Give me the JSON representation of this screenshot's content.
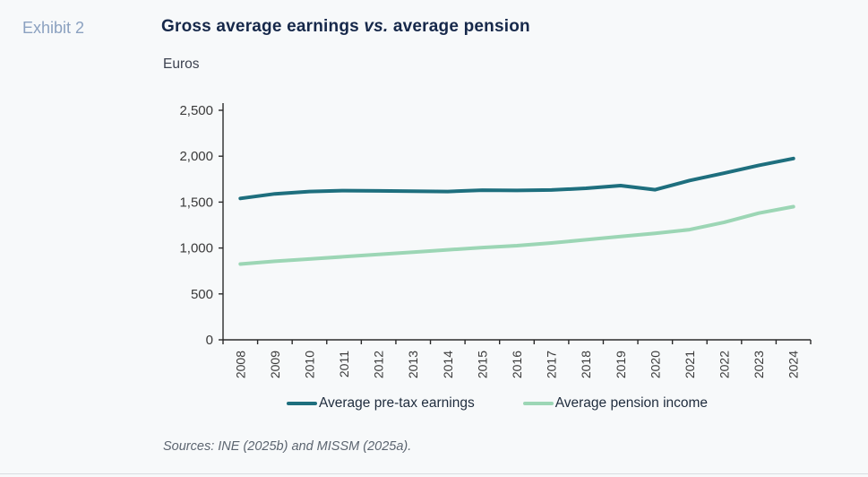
{
  "page": {
    "background": "#f7f9fa"
  },
  "exhibit_label": "Exhibit 2",
  "title": {
    "prefix": "Gross average earnings ",
    "vs": "vs.",
    "suffix": " average pension"
  },
  "units_label": "Euros",
  "source_note": "Sources: INE (2025b) and MISSM (2025a).",
  "colors": {
    "title": "#16284a",
    "exhibit": "#8ba1c0",
    "earnings_line": "#1e6f7e",
    "pension_line": "#9cd6b5",
    "axis": "#2a2a2a",
    "tick_text": "#3a3a3a"
  },
  "chart_data": {
    "type": "line",
    "title": "Gross average earnings vs. average pension",
    "ylabel": "Euros",
    "xlabel": "",
    "ylim": [
      0,
      2500
    ],
    "ytick_step": 500,
    "grid": false,
    "legend_position": "bottom",
    "categories": [
      "2008",
      "2009",
      "2010",
      "2011",
      "2012",
      "2013",
      "2014",
      "2015",
      "2016",
      "2017",
      "2018",
      "2019",
      "2020",
      "2021",
      "2022",
      "2023",
      "2024"
    ],
    "series": [
      {
        "name": "Average pre-tax earnings",
        "color": "#1e6f7e",
        "values": [
          1540,
          1590,
          1615,
          1625,
          1622,
          1618,
          1615,
          1630,
          1627,
          1632,
          1650,
          1680,
          1635,
          1735,
          1815,
          1900,
          1975
        ]
      },
      {
        "name": "Average pension income",
        "color": "#9cd6b5",
        "values": [
          825,
          855,
          880,
          905,
          930,
          955,
          980,
          1005,
          1025,
          1055,
          1090,
          1125,
          1160,
          1200,
          1280,
          1380,
          1450
        ]
      }
    ]
  }
}
